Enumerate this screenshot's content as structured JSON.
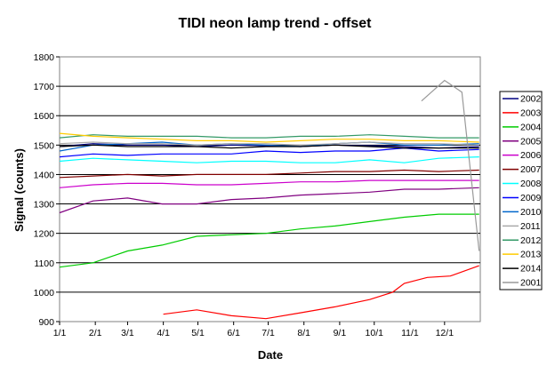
{
  "chart_data": {
    "type": "line",
    "title": "TIDI neon lamp trend - offset",
    "xlabel": "Date",
    "ylabel": "Signal (counts)",
    "ylim": [
      900,
      1800
    ],
    "yticks": [
      900,
      1000,
      1100,
      1200,
      1300,
      1400,
      1500,
      1600,
      1700,
      1800
    ],
    "x_unit": "day of year",
    "xlim": [
      1,
      366
    ],
    "xtick_labels": [
      "1/1",
      "2/1",
      "3/1",
      "4/1",
      "5/1",
      "6/1",
      "7/1",
      "8/1",
      "9/1",
      "10/1",
      "11/1",
      "12/1"
    ],
    "xtick_days": [
      1,
      32,
      60,
      91,
      121,
      152,
      182,
      213,
      244,
      274,
      305,
      335
    ],
    "grid": "horizontal",
    "legend_position": "right",
    "series": [
      {
        "name": "2002",
        "color": "#000080",
        "days": [
          1,
          30,
          60,
          90,
          120,
          150,
          180,
          210,
          240,
          270,
          300,
          330,
          365
        ],
        "values": [
          1495,
          1505,
          1500,
          1500,
          1495,
          1500,
          1498,
          1495,
          1500,
          1498,
          1495,
          1490,
          1495
        ]
      },
      {
        "name": "2003",
        "color": "#ff0000",
        "days": [
          91,
          120,
          150,
          180,
          210,
          240,
          270,
          290,
          300,
          320,
          340,
          365
        ],
        "values": [
          925,
          940,
          920,
          910,
          930,
          950,
          975,
          1000,
          1030,
          1050,
          1055,
          1090
        ]
      },
      {
        "name": "2004",
        "color": "#00cc00",
        "days": [
          1,
          30,
          60,
          90,
          120,
          150,
          180,
          210,
          240,
          270,
          300,
          330,
          365
        ],
        "values": [
          1085,
          1100,
          1140,
          1160,
          1190,
          1195,
          1200,
          1215,
          1225,
          1240,
          1255,
          1265,
          1265
        ]
      },
      {
        "name": "2005",
        "color": "#800080",
        "days": [
          1,
          30,
          60,
          90,
          120,
          150,
          180,
          210,
          240,
          270,
          300,
          330,
          365
        ],
        "values": [
          1270,
          1310,
          1320,
          1300,
          1300,
          1315,
          1320,
          1330,
          1335,
          1340,
          1350,
          1350,
          1355
        ]
      },
      {
        "name": "2006",
        "color": "#cc00cc",
        "days": [
          1,
          30,
          60,
          90,
          120,
          150,
          180,
          210,
          240,
          270,
          300,
          330,
          365
        ],
        "values": [
          1355,
          1365,
          1370,
          1370,
          1365,
          1365,
          1370,
          1375,
          1375,
          1380,
          1380,
          1380,
          1380
        ]
      },
      {
        "name": "2007",
        "color": "#800000",
        "days": [
          1,
          30,
          60,
          90,
          120,
          150,
          180,
          210,
          240,
          270,
          300,
          330,
          365
        ],
        "values": [
          1390,
          1395,
          1400,
          1395,
          1400,
          1400,
          1400,
          1405,
          1410,
          1410,
          1415,
          1410,
          1415
        ]
      },
      {
        "name": "2008",
        "color": "#00ffff",
        "days": [
          1,
          30,
          60,
          90,
          120,
          150,
          180,
          210,
          240,
          270,
          300,
          330,
          365
        ],
        "values": [
          1445,
          1455,
          1450,
          1445,
          1440,
          1445,
          1445,
          1440,
          1440,
          1450,
          1440,
          1455,
          1460
        ]
      },
      {
        "name": "2009",
        "color": "#0000ff",
        "days": [
          1,
          30,
          60,
          90,
          120,
          150,
          180,
          210,
          240,
          270,
          300,
          330,
          365
        ],
        "values": [
          1460,
          1470,
          1465,
          1470,
          1470,
          1470,
          1480,
          1475,
          1480,
          1480,
          1490,
          1480,
          1485
        ]
      },
      {
        "name": "2010",
        "color": "#0066cc",
        "days": [
          1,
          30,
          60,
          90,
          120,
          150,
          180,
          210,
          240,
          270,
          300,
          330,
          365
        ],
        "values": [
          1480,
          1500,
          1505,
          1510,
          1500,
          1505,
          1500,
          1495,
          1505,
          1510,
          1500,
          1500,
          1505
        ]
      },
      {
        "name": "2011",
        "color": "#aaaaaa",
        "days": [
          1,
          30,
          60,
          90,
          120,
          150,
          180,
          210,
          240,
          270,
          300,
          330,
          365
        ],
        "values": [
          1505,
          1510,
          1505,
          1505,
          1500,
          1505,
          1505,
          1500,
          1505,
          1510,
          1505,
          1505,
          1500
        ]
      },
      {
        "name": "2012",
        "color": "#339966",
        "days": [
          1,
          30,
          60,
          90,
          120,
          150,
          180,
          210,
          240,
          270,
          300,
          330,
          365
        ],
        "values": [
          1525,
          1535,
          1530,
          1530,
          1530,
          1525,
          1525,
          1530,
          1530,
          1535,
          1530,
          1525,
          1525
        ]
      },
      {
        "name": "2013",
        "color": "#ffcc00",
        "days": [
          1,
          30,
          60,
          90,
          120,
          150,
          180,
          210,
          240,
          270,
          300,
          330,
          365
        ],
        "values": [
          1540,
          1530,
          1525,
          1520,
          1515,
          1515,
          1510,
          1515,
          1520,
          1520,
          1515,
          1515,
          1510
        ]
      },
      {
        "name": "2014",
        "color": "#000000",
        "days": [
          1,
          30,
          60,
          90,
          120,
          150,
          180,
          210,
          240,
          270,
          300,
          330,
          365
        ],
        "values": [
          1495,
          1500,
          1495,
          1495,
          1495,
          1490,
          1495,
          1495,
          1500,
          1495,
          1490,
          1490,
          1490
        ]
      },
      {
        "name": "2001",
        "color": "#999999",
        "days": [
          315,
          335,
          350,
          365
        ],
        "values": [
          1650,
          1720,
          1680,
          1140
        ]
      }
    ]
  }
}
